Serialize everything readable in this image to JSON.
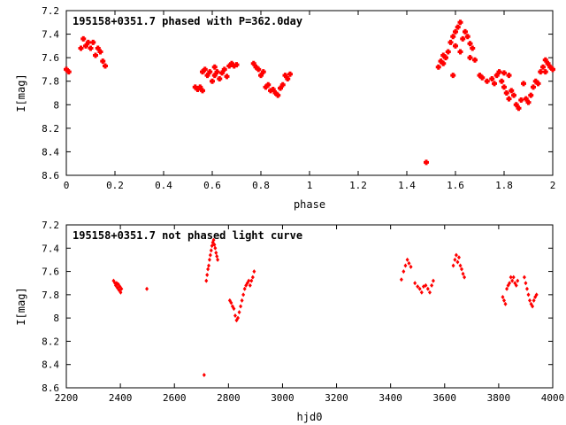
{
  "chart_data": [
    {
      "type": "scatter",
      "title": "195158+0351.7 phased with P=362.0day",
      "xlabel": "phase",
      "ylabel": "I[mag]",
      "xlim": [
        0,
        2
      ],
      "ylim": [
        8.6,
        7.2
      ],
      "xticks": [
        "0",
        "0.2",
        "0.4",
        "0.6",
        "0.8",
        "1",
        "1.2",
        "1.4",
        "1.6",
        "1.8",
        "2"
      ],
      "yticks": [
        "7.2",
        "7.4",
        "7.6",
        "7.8",
        "8",
        "8.2",
        "8.4",
        "8.6"
      ],
      "marker_color": "#ff0000",
      "grid": false,
      "points": [
        [
          0.0,
          7.7
        ],
        [
          0.01,
          7.72
        ],
        [
          0.06,
          7.52
        ],
        [
          0.07,
          7.44
        ],
        [
          0.08,
          7.5
        ],
        [
          0.09,
          7.47
        ],
        [
          0.1,
          7.52
        ],
        [
          0.11,
          7.47
        ],
        [
          0.12,
          7.58
        ],
        [
          0.13,
          7.52
        ],
        [
          0.14,
          7.55
        ],
        [
          0.15,
          7.63
        ],
        [
          0.16,
          7.67
        ],
        [
          0.53,
          7.85
        ],
        [
          0.54,
          7.87
        ],
        [
          0.55,
          7.85
        ],
        [
          0.56,
          7.88
        ],
        [
          0.56,
          7.72
        ],
        [
          0.57,
          7.7
        ],
        [
          0.58,
          7.75
        ],
        [
          0.59,
          7.72
        ],
        [
          0.6,
          7.8
        ],
        [
          0.61,
          7.68
        ],
        [
          0.61,
          7.75
        ],
        [
          0.62,
          7.72
        ],
        [
          0.63,
          7.78
        ],
        [
          0.64,
          7.73
        ],
        [
          0.65,
          7.7
        ],
        [
          0.66,
          7.76
        ],
        [
          0.67,
          7.67
        ],
        [
          0.68,
          7.65
        ],
        [
          0.69,
          7.67
        ],
        [
          0.7,
          7.66
        ],
        [
          0.77,
          7.65
        ],
        [
          0.78,
          7.68
        ],
        [
          0.79,
          7.7
        ],
        [
          0.8,
          7.75
        ],
        [
          0.81,
          7.72
        ],
        [
          0.82,
          7.85
        ],
        [
          0.83,
          7.83
        ],
        [
          0.84,
          7.88
        ],
        [
          0.85,
          7.87
        ],
        [
          0.86,
          7.9
        ],
        [
          0.87,
          7.92
        ],
        [
          0.88,
          7.86
        ],
        [
          0.89,
          7.83
        ],
        [
          0.9,
          7.75
        ],
        [
          0.91,
          7.78
        ],
        [
          0.92,
          7.74
        ],
        [
          1.48,
          8.49
        ],
        [
          1.53,
          7.68
        ],
        [
          1.54,
          7.63
        ],
        [
          1.55,
          7.65
        ],
        [
          1.56,
          7.6
        ],
        [
          1.57,
          7.55
        ],
        [
          1.58,
          7.47
        ],
        [
          1.59,
          7.42
        ],
        [
          1.6,
          7.38
        ],
        [
          1.6,
          7.5
        ],
        [
          1.61,
          7.34
        ],
        [
          1.62,
          7.3
        ],
        [
          1.63,
          7.44
        ],
        [
          1.64,
          7.38
        ],
        [
          1.65,
          7.42
        ],
        [
          1.66,
          7.48
        ],
        [
          1.67,
          7.52
        ],
        [
          1.68,
          7.62
        ],
        [
          1.59,
          7.75
        ],
        [
          1.55,
          7.58
        ],
        [
          1.62,
          7.55
        ],
        [
          1.66,
          7.6
        ],
        [
          1.7,
          7.75
        ],
        [
          1.71,
          7.77
        ],
        [
          1.73,
          7.8
        ],
        [
          1.75,
          7.78
        ],
        [
          1.76,
          7.82
        ],
        [
          1.77,
          7.75
        ],
        [
          1.78,
          7.72
        ],
        [
          1.79,
          7.8
        ],
        [
          1.8,
          7.85
        ],
        [
          1.81,
          7.9
        ],
        [
          1.82,
          7.95
        ],
        [
          1.83,
          7.88
        ],
        [
          1.84,
          7.92
        ],
        [
          1.85,
          8.0
        ],
        [
          1.86,
          8.03
        ],
        [
          1.87,
          7.96
        ],
        [
          1.88,
          7.82
        ],
        [
          1.89,
          7.95
        ],
        [
          1.9,
          7.98
        ],
        [
          1.91,
          7.92
        ],
        [
          1.92,
          7.85
        ],
        [
          1.93,
          7.8
        ],
        [
          1.94,
          7.82
        ],
        [
          1.95,
          7.72
        ],
        [
          1.96,
          7.68
        ],
        [
          1.97,
          7.72
        ],
        [
          1.98,
          7.65
        ],
        [
          1.99,
          7.68
        ],
        [
          2.0,
          7.7
        ],
        [
          1.8,
          7.73
        ],
        [
          1.82,
          7.75
        ],
        [
          1.97,
          7.62
        ]
      ]
    },
    {
      "type": "scatter",
      "title": "195158+0351.7 not phased light curve",
      "xlabel": "hjd0",
      "ylabel": "I[mag]",
      "xlim": [
        2200,
        4000
      ],
      "ylim": [
        8.6,
        7.2
      ],
      "xticks": [
        "2200",
        "2400",
        "2600",
        "2800",
        "3000",
        "3200",
        "3400",
        "3600",
        "3800",
        "4000"
      ],
      "yticks": [
        "7.2",
        "7.4",
        "7.6",
        "7.8",
        "8",
        "8.2",
        "8.4",
        "8.6"
      ],
      "marker_color": "#ff0000",
      "grid": false,
      "points": [
        [
          2375,
          7.68
        ],
        [
          2380,
          7.7
        ],
        [
          2383,
          7.72
        ],
        [
          2386,
          7.7
        ],
        [
          2389,
          7.74
        ],
        [
          2392,
          7.71
        ],
        [
          2395,
          7.76
        ],
        [
          2398,
          7.73
        ],
        [
          2401,
          7.78
        ],
        [
          2404,
          7.75
        ],
        [
          2498,
          7.75
        ],
        [
          2710,
          8.49
        ],
        [
          2718,
          7.68
        ],
        [
          2721,
          7.63
        ],
        [
          2724,
          7.58
        ],
        [
          2727,
          7.55
        ],
        [
          2730,
          7.5
        ],
        [
          2733,
          7.46
        ],
        [
          2736,
          7.42
        ],
        [
          2739,
          7.38
        ],
        [
          2742,
          7.35
        ],
        [
          2745,
          7.33
        ],
        [
          2748,
          7.37
        ],
        [
          2751,
          7.4
        ],
        [
          2754,
          7.44
        ],
        [
          2757,
          7.47
        ],
        [
          2760,
          7.5
        ],
        [
          2805,
          7.85
        ],
        [
          2810,
          7.87
        ],
        [
          2815,
          7.9
        ],
        [
          2820,
          7.92
        ],
        [
          2825,
          7.98
        ],
        [
          2830,
          8.02
        ],
        [
          2835,
          8.0
        ],
        [
          2840,
          7.95
        ],
        [
          2845,
          7.9
        ],
        [
          2850,
          7.85
        ],
        [
          2855,
          7.8
        ],
        [
          2860,
          7.75
        ],
        [
          2865,
          7.72
        ],
        [
          2870,
          7.7
        ],
        [
          2875,
          7.68
        ],
        [
          2880,
          7.72
        ],
        [
          2885,
          7.68
        ],
        [
          2890,
          7.65
        ],
        [
          2895,
          7.6
        ],
        [
          3440,
          7.67
        ],
        [
          3448,
          7.6
        ],
        [
          3455,
          7.55
        ],
        [
          3462,
          7.5
        ],
        [
          3468,
          7.53
        ],
        [
          3475,
          7.56
        ],
        [
          3490,
          7.7
        ],
        [
          3500,
          7.73
        ],
        [
          3508,
          7.75
        ],
        [
          3515,
          7.78
        ],
        [
          3522,
          7.73
        ],
        [
          3530,
          7.72
        ],
        [
          3538,
          7.75
        ],
        [
          3545,
          7.78
        ],
        [
          3552,
          7.72
        ],
        [
          3558,
          7.68
        ],
        [
          3632,
          7.55
        ],
        [
          3638,
          7.5
        ],
        [
          3643,
          7.46
        ],
        [
          3648,
          7.52
        ],
        [
          3653,
          7.48
        ],
        [
          3658,
          7.55
        ],
        [
          3663,
          7.58
        ],
        [
          3668,
          7.62
        ],
        [
          3673,
          7.65
        ],
        [
          3815,
          7.82
        ],
        [
          3820,
          7.85
        ],
        [
          3825,
          7.88
        ],
        [
          3830,
          7.75
        ],
        [
          3835,
          7.72
        ],
        [
          3840,
          7.7
        ],
        [
          3845,
          7.65
        ],
        [
          3850,
          7.68
        ],
        [
          3855,
          7.65
        ],
        [
          3860,
          7.7
        ],
        [
          3865,
          7.72
        ],
        [
          3870,
          7.68
        ],
        [
          3895,
          7.65
        ],
        [
          3900,
          7.7
        ],
        [
          3905,
          7.75
        ],
        [
          3910,
          7.8
        ],
        [
          3915,
          7.85
        ],
        [
          3920,
          7.88
        ],
        [
          3925,
          7.9
        ],
        [
          3930,
          7.85
        ],
        [
          3935,
          7.82
        ],
        [
          3940,
          7.8
        ]
      ]
    }
  ]
}
